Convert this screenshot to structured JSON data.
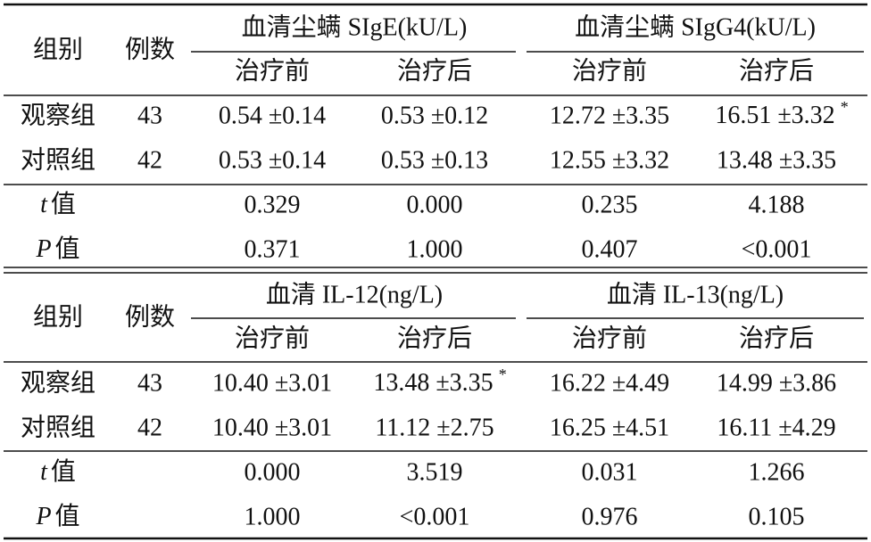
{
  "tables": [
    {
      "header": {
        "group": "组别",
        "count": "例数",
        "groups": [
          {
            "title": "血清尘螨 SIgE(kU/L)",
            "sub": [
              "治疗前",
              "治疗后"
            ]
          },
          {
            "title": "血清尘螨 SIgG4(kU/L)",
            "sub": [
              "治疗前",
              "治疗后"
            ]
          }
        ]
      },
      "rows": [
        {
          "label": "观察组",
          "n": "43",
          "values": [
            "0.54 ±0.14",
            "0.53 ±0.12",
            "12.72 ±3.35",
            {
              "text": "16.51 ±3.32",
              "sup": "*"
            }
          ]
        },
        {
          "label": "对照组",
          "n": "42",
          "values": [
            "0.53 ±0.14",
            "0.53 ±0.13",
            "12.55 ±3.32",
            "13.48 ±3.35"
          ]
        },
        {
          "label": {
            "italic": "t",
            "text": "值"
          },
          "values": [
            "0.329",
            "0.000",
            "0.235",
            "4.188"
          ]
        },
        {
          "label": {
            "italic": "P",
            "text": "值"
          },
          "values": [
            "0.371",
            "1.000",
            "0.407",
            "<0.001"
          ]
        }
      ]
    },
    {
      "header": {
        "group": "组别",
        "count": "例数",
        "groups": [
          {
            "title": "血清 IL-12(ng/L)",
            "sub": [
              "治疗前",
              "治疗后"
            ]
          },
          {
            "title": "血清 IL-13(ng/L)",
            "sub": [
              "治疗前",
              "治疗后"
            ]
          }
        ]
      },
      "rows": [
        {
          "label": "观察组",
          "n": "43",
          "values": [
            "10.40 ±3.01",
            {
              "text": "13.48 ±3.35",
              "sup": "*"
            },
            "16.22 ±4.49",
            "14.99 ±3.86"
          ]
        },
        {
          "label": "对照组",
          "n": "42",
          "values": [
            "10.40 ±3.01",
            "11.12 ±2.75",
            "16.25 ±4.51",
            "16.11 ±4.29"
          ]
        },
        {
          "label": {
            "italic": "t",
            "text": "值"
          },
          "values": [
            "0.000",
            "3.519",
            "0.031",
            "1.266"
          ]
        },
        {
          "label": {
            "italic": "P",
            "text": "值"
          },
          "values": [
            "1.000",
            "<0.001",
            "0.976",
            "0.105"
          ]
        }
      ]
    }
  ]
}
